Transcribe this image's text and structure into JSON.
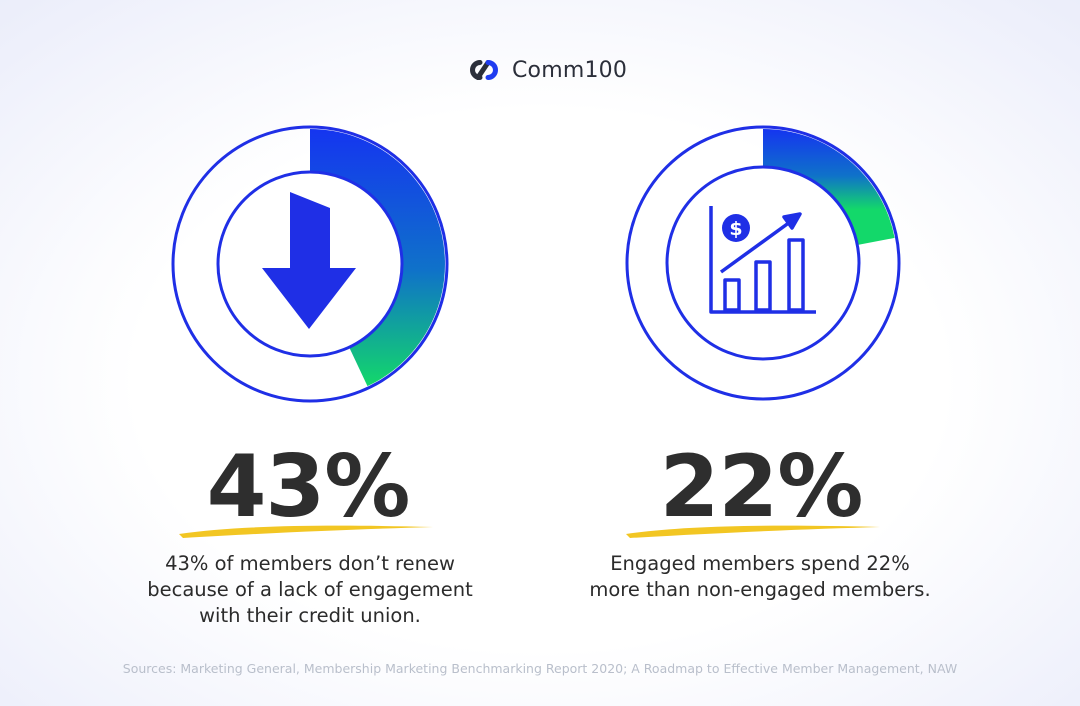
{
  "brand": {
    "name": "Comm100"
  },
  "chart_data": [
    {
      "type": "pie",
      "values": [
        43,
        57
      ],
      "stat_label": "43%",
      "caption_lines": [
        "43% of members don’t renew",
        "because of a lack of engagement",
        "with their credit union."
      ],
      "icon": "down-arrow-icon"
    },
    {
      "type": "pie",
      "values": [
        22,
        78
      ],
      "stat_label": "22%",
      "caption_lines": [
        "Engaged members spend 22%",
        "more than non-engaged members."
      ],
      "icon": "growth-chart-dollar-icon"
    }
  ],
  "colors": {
    "ring_blue": "#1f2fe6",
    "gradient_start": "#1535f0",
    "gradient_end": "#13d86a",
    "underline": "#f2c623",
    "stat_text": "#2e2e2e"
  },
  "sources": "Sources: Marketing General, Membership Marketing Benchmarking Report 2020; A Roadmap to Effective Member Management, NAW"
}
